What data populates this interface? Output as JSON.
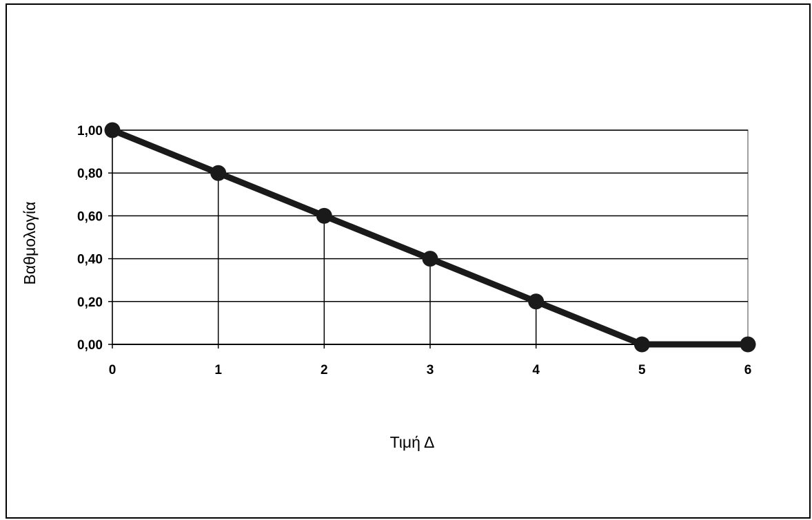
{
  "chart_data": {
    "type": "line",
    "xlabel": "Τιμή Δ",
    "ylabel": "Βαθμολογία",
    "x": [
      0,
      1,
      2,
      3,
      4,
      5,
      6
    ],
    "xlim": [
      0,
      6
    ],
    "ylim": [
      0,
      1
    ],
    "y_ticks": [
      0,
      0.2,
      0.4,
      0.6,
      0.8,
      1.0
    ],
    "y_tick_labels": [
      "0,00",
      "0,20",
      "0,40",
      "0,60",
      "0,80",
      "1,00"
    ],
    "x_tick_labels": [
      "0",
      "1",
      "2",
      "3",
      "4",
      "5",
      "6"
    ],
    "series": [
      {
        "values": [
          1.0,
          0.8,
          0.6,
          0.4,
          0.2,
          0.0,
          0.0
        ],
        "color": "#1a1a1a",
        "marker": "circle"
      }
    ],
    "drop_lines": true,
    "grid": "horizontal",
    "legend": "none",
    "colors": {
      "line": "#1a1a1a",
      "grid": "#000000",
      "plot_border": "#808080",
      "background": "#ffffff"
    }
  }
}
